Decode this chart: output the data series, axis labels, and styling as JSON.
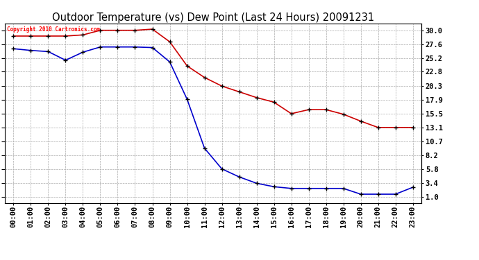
{
  "title": "Outdoor Temperature (vs) Dew Point (Last 24 Hours) 20091231",
  "copyright": "Copyright 2010 Cartronics.com",
  "x_labels": [
    "00:00",
    "01:00",
    "02:00",
    "03:00",
    "04:00",
    "05:00",
    "06:00",
    "07:00",
    "08:00",
    "09:00",
    "10:00",
    "11:00",
    "12:00",
    "13:00",
    "14:00",
    "15:00",
    "16:00",
    "17:00",
    "18:00",
    "19:00",
    "20:00",
    "21:00",
    "22:00",
    "23:00"
  ],
  "temp_data": [
    29.0,
    29.0,
    29.0,
    29.0,
    29.2,
    30.0,
    30.0,
    30.0,
    30.2,
    28.0,
    23.8,
    21.8,
    20.3,
    19.3,
    18.3,
    17.5,
    15.5,
    16.2,
    16.2,
    15.4,
    14.2,
    13.1,
    13.1,
    13.1
  ],
  "dew_data": [
    26.8,
    26.5,
    26.3,
    24.8,
    26.2,
    27.1,
    27.1,
    27.1,
    27.0,
    24.5,
    18.0,
    9.5,
    5.9,
    4.5,
    3.4,
    2.8,
    2.5,
    2.5,
    2.5,
    2.5,
    1.5,
    1.5,
    1.5,
    2.7
  ],
  "temp_color": "#cc0000",
  "dew_color": "#0000cc",
  "y_ticks": [
    1.0,
    3.4,
    5.8,
    8.2,
    10.7,
    13.1,
    15.5,
    17.9,
    20.3,
    22.8,
    25.2,
    27.6,
    30.0
  ],
  "ylim": [
    0.0,
    31.2
  ],
  "background_color": "#ffffff",
  "grid_color": "#aaaaaa",
  "title_fontsize": 10.5,
  "label_fontsize": 7.5,
  "copyright_fontsize": 5.5
}
